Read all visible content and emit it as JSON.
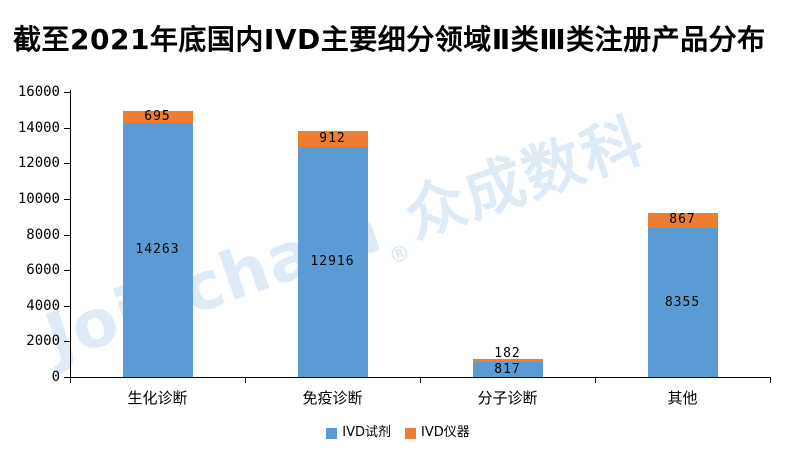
{
  "title": "截至2021年底国内IVD主要细分领域Ⅱ类Ⅲ类注册产品分布",
  "watermark": {
    "brand_latin": "Joinchain",
    "registered_mark": "®",
    "brand_cjk": "众成数科",
    "color": "#5b9bd5"
  },
  "colors": {
    "reagent_blue": "#5b9bd5",
    "instrument_orange": "#ed7d31",
    "axis": "#000000",
    "text": "#000000"
  },
  "chart_data": {
    "type": "bar",
    "stacked": true,
    "title": "截至2021年底国内IVD主要细分领域Ⅱ类Ⅲ类注册产品分布",
    "categories": [
      "生化诊断",
      "免疫诊断",
      "分子诊断",
      "其他"
    ],
    "series": [
      {
        "name": "IVD试剂",
        "color": "#5b9bd5",
        "values": [
          14263,
          12916,
          817,
          8355
        ]
      },
      {
        "name": "IVD仪器",
        "color": "#ed7d31",
        "values": [
          695,
          912,
          182,
          867
        ]
      }
    ],
    "xlabel": "",
    "ylabel": "",
    "ylim": [
      0,
      16000
    ],
    "ytick_step": 2000,
    "ytick_labels": [
      "0",
      "2000",
      "4000",
      "6000",
      "8000",
      "10000",
      "12000",
      "14000",
      "16000"
    ],
    "grid": false,
    "data_labels": true,
    "legend_position": "bottom"
  }
}
